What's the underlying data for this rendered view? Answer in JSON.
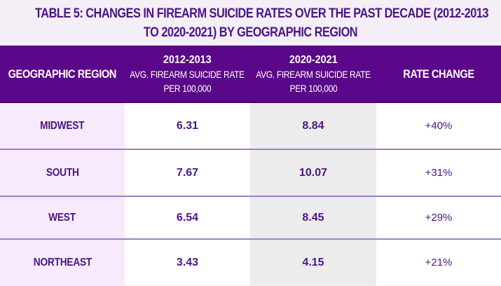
{
  "title": {
    "line1": "TABLE 5: CHANGES IN FIREARM SUICIDE RATES OVER THE PAST DECADE (2012-2013",
    "line2": "TO 2020-2021) BY GEOGRAPHIC REGION"
  },
  "table": {
    "headers": [
      {
        "main": "GEOGRAPHIC REGION"
      },
      {
        "year": "2012-2013",
        "sub1": "AVG. FIREARM SUICIDE RATE",
        "sub2": "PER 100,000"
      },
      {
        "year": "2020-2021",
        "sub1": "AVG. FIREARM SUICIDE RATE",
        "sub2": "PER 100,000"
      },
      {
        "main": "RATE CHANGE"
      }
    ],
    "rows": [
      {
        "region": "MIDWEST",
        "rate_2012_2013": "6.31",
        "rate_2020_2021": "8.84",
        "change": "+40%"
      },
      {
        "region": "SOUTH",
        "rate_2012_2013": "7.67",
        "rate_2020_2021": "10.07",
        "change": "+31%"
      },
      {
        "region": "WEST",
        "rate_2012_2013": "6.54",
        "rate_2020_2021": "8.45",
        "change": "+29%"
      },
      {
        "region": "NORTHEAST",
        "rate_2012_2013": "3.43",
        "rate_2020_2021": "4.15",
        "change": "+21%"
      }
    ]
  },
  "colors": {
    "header_bg": "#5b0789",
    "text_purple": "#4b1585",
    "region_bg": "#f6eafc",
    "col3_bg": "#ececec",
    "row_border": "#a47ec4",
    "page_bg": "#f4eef6"
  }
}
